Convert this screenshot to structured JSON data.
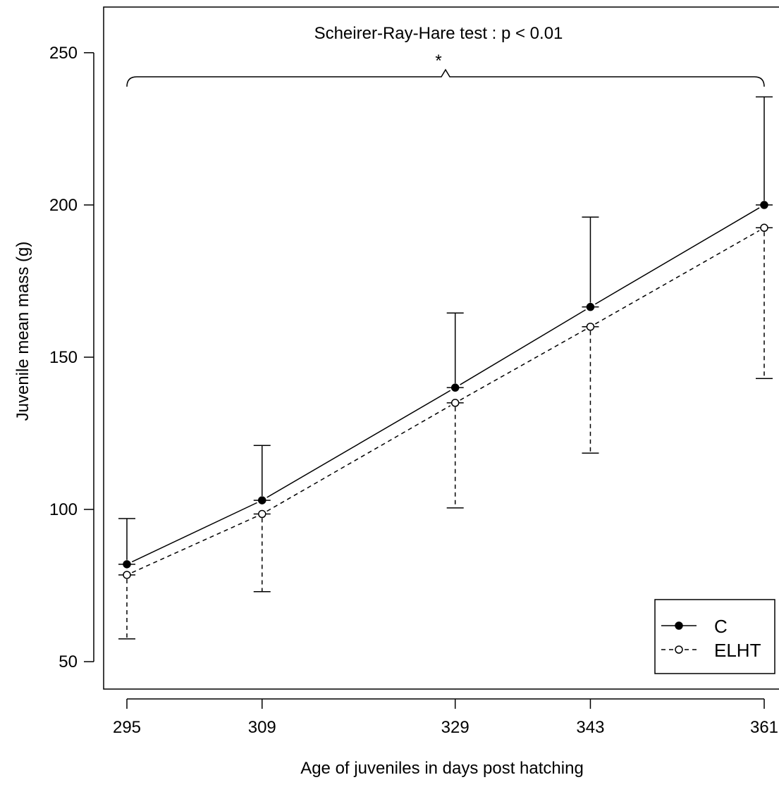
{
  "chart_data": {
    "type": "line",
    "xlabel": "Age of juveniles in days post hatching",
    "ylabel": "Juvenile mean mass (g)",
    "x": [
      295,
      309,
      329,
      343,
      361
    ],
    "x_ticks": [
      "295",
      "309",
      "329",
      "343",
      "361"
    ],
    "y_ticks": [
      50,
      100,
      150,
      200,
      250
    ],
    "ylim": [
      41,
      265
    ],
    "grid": false,
    "legend_position": "bottom-right",
    "series": [
      {
        "name": "C",
        "marker": "filled-circle",
        "line_style": "solid",
        "error_direction": "up",
        "values": [
          82,
          103,
          140,
          166.5,
          200
        ],
        "error_bound": [
          97,
          121,
          164.5,
          196,
          235.5
        ]
      },
      {
        "name": "ELHT",
        "marker": "open-circle",
        "line_style": "dashed",
        "error_direction": "down",
        "values": [
          78.5,
          98.5,
          135,
          160,
          192.5
        ],
        "error_bound": [
          57.5,
          73,
          100.5,
          118.5,
          143
        ]
      }
    ],
    "annotations": {
      "test": "Scheirer-Ray-Hare test : p < 0.01",
      "mark": "*",
      "bracket_from": 295,
      "bracket_to": 361
    }
  }
}
